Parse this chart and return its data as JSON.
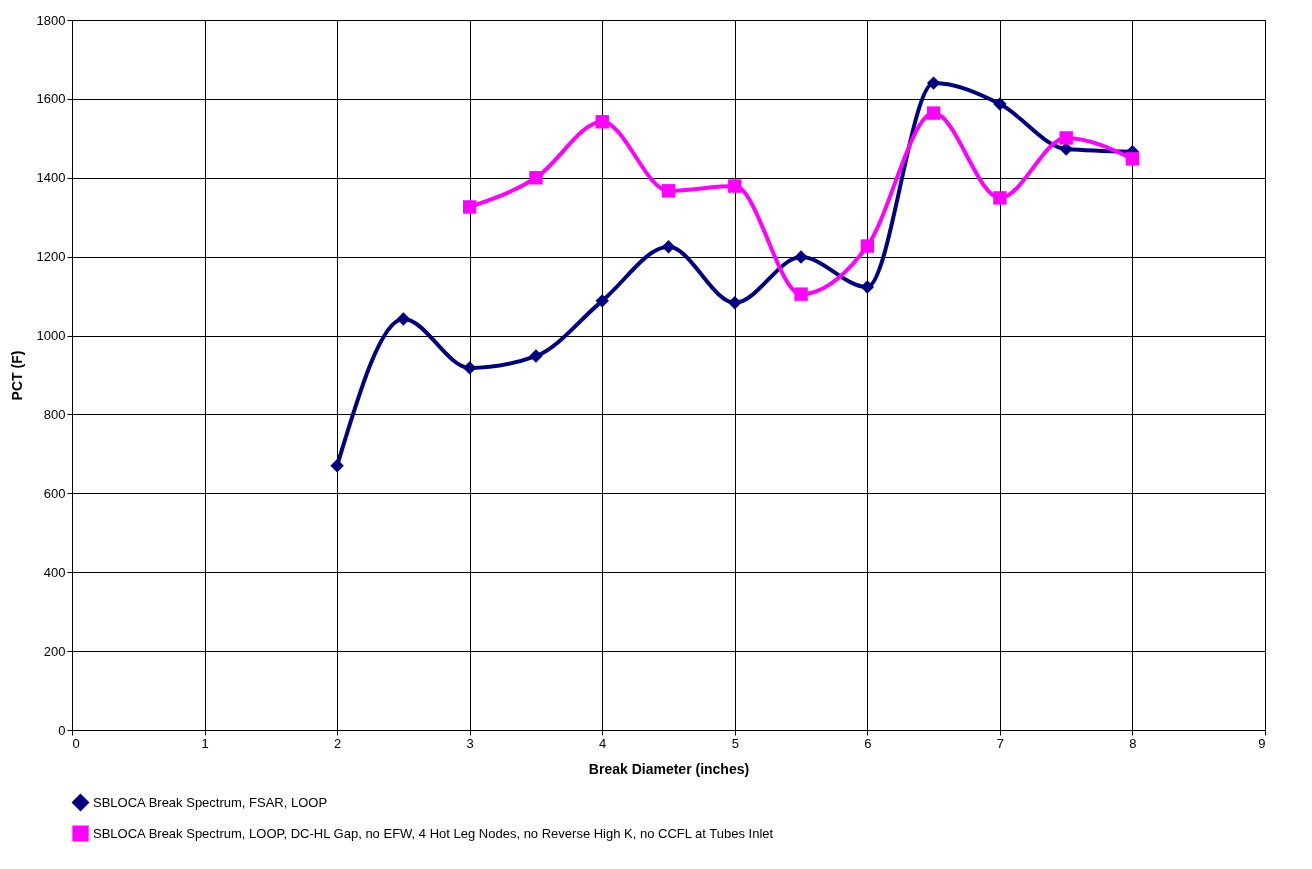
{
  "chart_data": {
    "type": "line",
    "xlabel": "Break Diameter (inches)",
    "ylabel": "PCT (F)",
    "xlim": [
      0,
      9
    ],
    "xticks": [
      0,
      1,
      2,
      3,
      4,
      5,
      6,
      7,
      8,
      9
    ],
    "ylim": [
      0,
      1800
    ],
    "yticks": [
      0,
      200,
      400,
      600,
      800,
      1000,
      1200,
      1400,
      1600,
      1800
    ],
    "grid": true,
    "legend": "bottom left",
    "line_style": "solid",
    "series": [
      {
        "name": "SBLOCA Break Spectrum, FSAR, LOOP",
        "color": "#000080",
        "marker": "diamond",
        "x": [
          2,
          2.5,
          3,
          3.5,
          4,
          4.5,
          5,
          5.5,
          6,
          6.5,
          7,
          7.5,
          8
        ],
        "values": [
          670,
          1042,
          918,
          948,
          1088,
          1225,
          1083,
          1199,
          1123,
          1640,
          1587,
          1473,
          1466
        ]
      },
      {
        "name": "SBLOCA Break Spectrum, LOOP, DC-HL Gap, no EFW, 4 Hot Leg Nodes, no Reverse High K, no CCFL at Tubes Inlet",
        "color": "#ff00ff",
        "marker": "square",
        "x": [
          3,
          3.5,
          4,
          4.5,
          5,
          5.5,
          6,
          6.5,
          7,
          7.5,
          8
        ],
        "values": [
          1326,
          1400,
          1542,
          1367,
          1379,
          1105,
          1227,
          1564,
          1349,
          1501,
          1448
        ]
      }
    ]
  }
}
